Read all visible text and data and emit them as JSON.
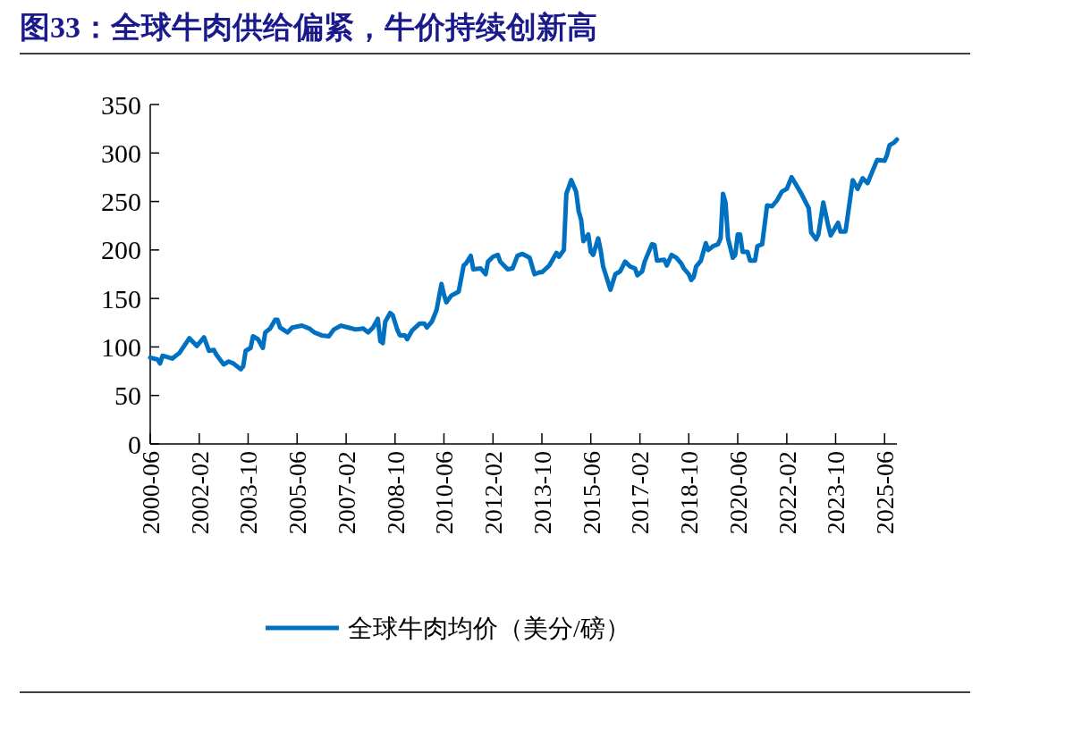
{
  "chart_data": {
    "type": "line",
    "title": "图33：全球牛肉供给偏紧，牛价持续创新高",
    "x": [
      "2000-06",
      "2000-09",
      "2000-10",
      "2000-11",
      "2001-03",
      "2001-05",
      "2001-06",
      "2001-10",
      "2002-01",
      "2002-04",
      "2002-06",
      "2002-08",
      "2002-09",
      "2002-12",
      "2003-02",
      "2003-04",
      "2003-07",
      "2003-08",
      "2003-09",
      "2003-11",
      "2003-12",
      "2004-02",
      "2004-04",
      "2004-05",
      "2004-07",
      "2004-09",
      "2004-10",
      "2004-11",
      "2005-02",
      "2005-04",
      "2005-08",
      "2005-11",
      "2006-01",
      "2006-04",
      "2006-07",
      "2006-09",
      "2006-12",
      "2007-03",
      "2007-06",
      "2007-09",
      "2007-11",
      "2008-01",
      "2008-03",
      "2008-04",
      "2008-05",
      "2008-06",
      "2008-08",
      "2008-09",
      "2008-11",
      "2008-12",
      "2009-02",
      "2009-03",
      "2009-05",
      "2009-08",
      "2009-10",
      "2009-11",
      "2010-01",
      "2010-03",
      "2010-05",
      "2010-06",
      "2010-07",
      "2010-09",
      "2010-12",
      "2011-02",
      "2011-03",
      "2011-05",
      "2011-06",
      "2011-09",
      "2011-11",
      "2011-12",
      "2012-02",
      "2012-04",
      "2012-05",
      "2012-08",
      "2012-10",
      "2012-12",
      "2013-02",
      "2013-05",
      "2013-07",
      "2013-09",
      "2013-10",
      "2014-01",
      "2014-04",
      "2014-05",
      "2014-07",
      "2014-08",
      "2014-10",
      "2014-12",
      "2015-01",
      "2015-02",
      "2015-03",
      "2015-05",
      "2015-06",
      "2015-07",
      "2015-09",
      "2015-10",
      "2015-11",
      "2016-02",
      "2016-04",
      "2016-06",
      "2016-08",
      "2016-10",
      "2016-12",
      "2017-01",
      "2017-03",
      "2017-04",
      "2017-05",
      "2017-07",
      "2017-08",
      "2017-09",
      "2017-12",
      "2018-01",
      "2018-03",
      "2018-05",
      "2018-07",
      "2018-08",
      "2018-10",
      "2018-11",
      "2018-12",
      "2019-01",
      "2019-03",
      "2019-05",
      "2019-06",
      "2019-08",
      "2019-10",
      "2019-11",
      "2019-12",
      "2020-01",
      "2020-02",
      "2020-04",
      "2020-05",
      "2020-06",
      "2020-07",
      "2020-08",
      "2020-10",
      "2020-11",
      "2021-01",
      "2021-02",
      "2021-04",
      "2021-06",
      "2021-08",
      "2021-10",
      "2021-12",
      "2022-02",
      "2022-04",
      "2022-05",
      "2022-08",
      "2022-11",
      "2022-12",
      "2023-02",
      "2023-03",
      "2023-05",
      "2023-07",
      "2023-08",
      "2023-11",
      "2023-12",
      "2024-02",
      "2024-05",
      "2024-07",
      "2024-09",
      "2024-11",
      "2025-03",
      "2025-06",
      "2025-07",
      "2025-08",
      "2025-10",
      "2025-11"
    ],
    "series": [
      {
        "name": "全球牛肉均价（美分/磅）",
        "color": "#0070c0",
        "values": [
          89,
          87,
          83,
          91,
          88,
          92,
          94,
          109,
          101,
          110,
          96,
          97,
          92,
          82,
          85,
          83,
          77,
          80,
          96,
          99,
          111,
          108,
          99,
          115,
          119,
          128,
          128,
          120,
          115,
          120,
          122,
          119,
          115,
          112,
          111,
          118,
          122,
          120,
          118,
          119,
          115,
          120,
          129,
          106,
          104,
          126,
          135,
          133,
          117,
          112,
          112,
          108,
          117,
          124,
          124,
          120,
          126,
          138,
          165,
          154,
          146,
          153,
          157,
          184,
          186,
          194,
          180,
          181,
          175,
          188,
          193,
          195,
          188,
          180,
          181,
          194,
          196,
          192,
          175,
          177,
          177,
          184,
          197,
          193,
          200,
          258,
          272,
          260,
          240,
          231,
          209,
          216,
          198,
          195,
          212,
          200,
          183,
          159,
          175,
          178,
          188,
          183,
          181,
          174,
          178,
          188,
          194,
          206,
          205,
          189,
          190,
          184,
          195,
          192,
          186,
          181,
          175,
          169,
          172,
          183,
          189,
          207,
          200,
          204,
          206,
          212,
          258,
          249,
          212,
          192,
          195,
          216,
          216,
          198,
          198,
          189,
          189,
          204,
          206,
          246,
          245,
          251,
          260,
          263,
          275,
          271,
          258,
          243,
          218,
          211,
          216,
          249,
          225,
          215,
          228,
          219,
          219,
          272,
          263,
          274,
          269,
          293,
          292,
          298,
          308,
          311,
          314
        ]
      }
    ],
    "xlim": [
      "2000-06",
      "2025-11"
    ],
    "xticks": [
      "2000-06",
      "2002-02",
      "2003-10",
      "2005-06",
      "2007-02",
      "2008-10",
      "2010-06",
      "2012-02",
      "2013-10",
      "2015-06",
      "2017-02",
      "2018-10",
      "2020-06",
      "2022-02",
      "2023-10",
      "2025-06"
    ],
    "ylim": [
      0,
      350
    ],
    "yticks": [
      0,
      50,
      100,
      150,
      200,
      250,
      300,
      350
    ],
    "grid": false,
    "legend": "bottom",
    "marker": "none",
    "line_style": "solid"
  }
}
